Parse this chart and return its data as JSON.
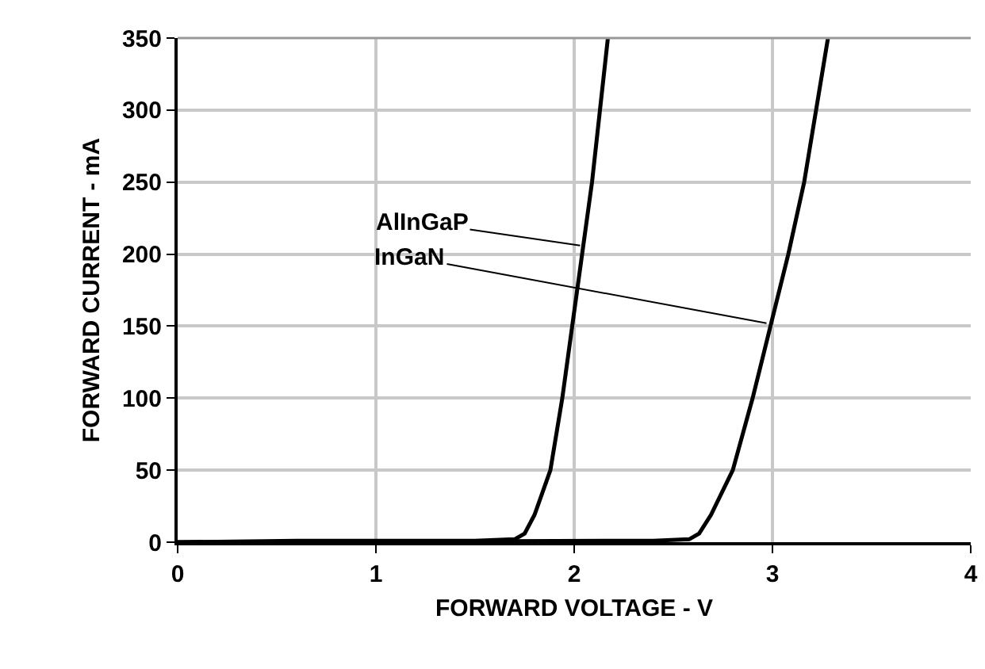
{
  "chart_data": {
    "type": "line",
    "xlabel": "FORWARD VOLTAGE - V",
    "ylabel": "FORWARD CURRENT - mA",
    "series": [
      {
        "color": "#000000",
        "x": [
          0,
          0.6,
          1.5,
          1.7,
          1.75,
          1.8,
          1.88,
          1.94,
          1.99,
          2.04,
          2.09,
          2.13,
          2.17
        ],
        "values": [
          0,
          1,
          1,
          2,
          6,
          19,
          50,
          100,
          150,
          200,
          250,
          300,
          350
        ]
      },
      {
        "color": "#000000",
        "x": [
          0,
          2.4,
          2.58,
          2.63,
          2.69,
          2.8,
          2.9,
          2.99,
          3.08,
          3.16,
          3.22,
          3.28
        ],
        "values": [
          0,
          1,
          2,
          6,
          19,
          50,
          100,
          150,
          200,
          250,
          300,
          350
        ]
      }
    ],
    "annotations": [
      {
        "text": "AlInGaP",
        "x": 2.03,
        "y": 206
      },
      {
        "text": "InGaN",
        "x": 2.97,
        "y": 152
      }
    ],
    "xlim": [
      0,
      4
    ],
    "xticks": [
      0,
      1,
      2,
      3,
      4
    ],
    "ylim": [
      0,
      350
    ],
    "yticks": [
      0,
      50,
      100,
      150,
      200,
      250,
      300,
      350
    ],
    "grid": true,
    "marker": "none",
    "line_style": "solid"
  }
}
